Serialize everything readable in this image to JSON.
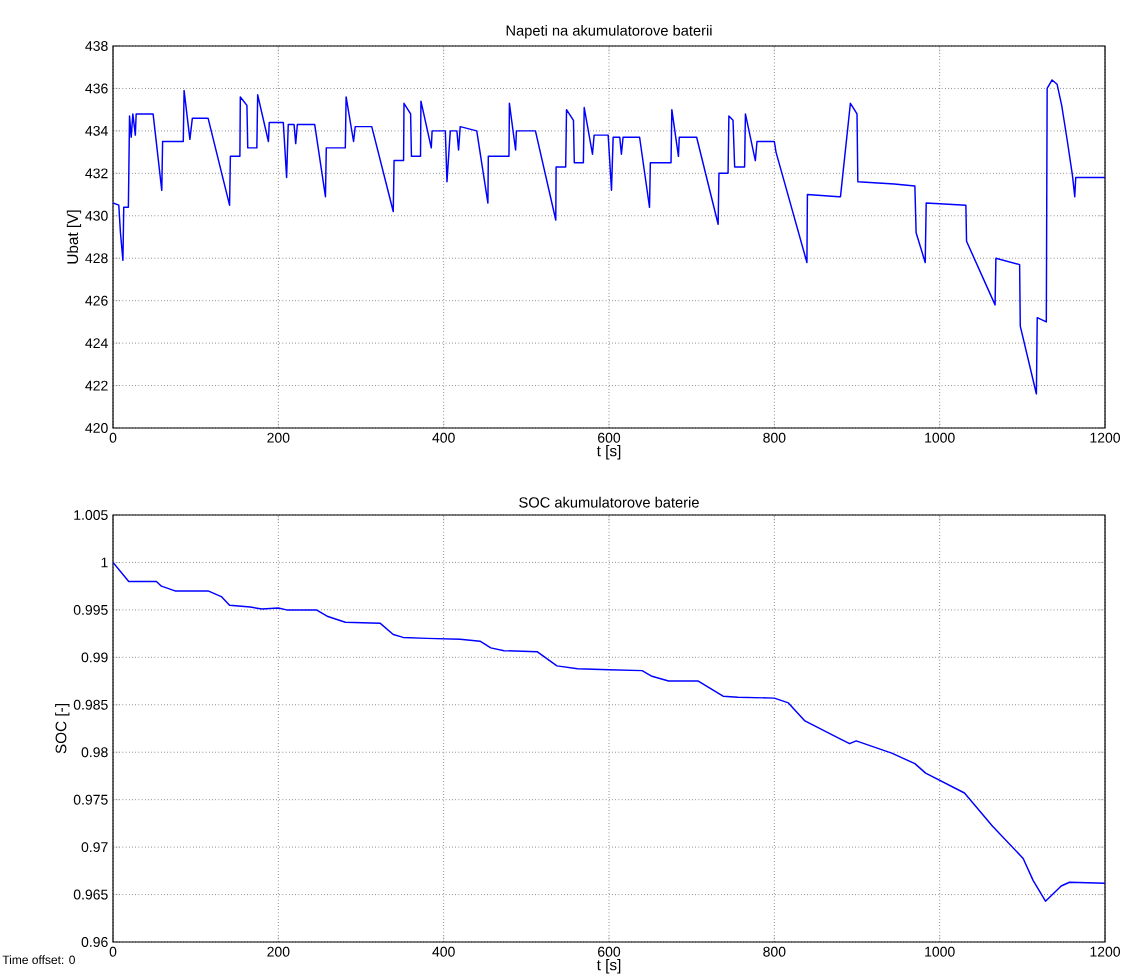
{
  "chart_data": [
    {
      "type": "line",
      "title": "Napeti na akumulatorove baterii",
      "xlabel": "t [s]",
      "ylabel": "Ubat [V]",
      "xlim": [
        0,
        1200
      ],
      "ylim": [
        420,
        438
      ],
      "xticks": [
        0,
        200,
        400,
        600,
        800,
        1000,
        1200
      ],
      "yticks": [
        420,
        422,
        424,
        426,
        428,
        430,
        432,
        434,
        436,
        438
      ],
      "grid": true,
      "series": [
        {
          "color": "#0000ff",
          "x": [
            0,
            7,
            9,
            12,
            13,
            18.6,
            20,
            22,
            24,
            27,
            28,
            48.5,
            59,
            60,
            85,
            86,
            93,
            96,
            115,
            141,
            142,
            153.5,
            154,
            162,
            163,
            174,
            175,
            188,
            189,
            206,
            210,
            212,
            219,
            221,
            223,
            244,
            257,
            258,
            281,
            282,
            291,
            293,
            313,
            339,
            340,
            351.5,
            352,
            360,
            361,
            372,
            372.5,
            385,
            386,
            402,
            404,
            408,
            416,
            418,
            420,
            440,
            453.5,
            454,
            479,
            479.5,
            487,
            488,
            511,
            535.6,
            536,
            547.6,
            548.6,
            557,
            558,
            569,
            570,
            580,
            582,
            599,
            603,
            605,
            613,
            615,
            617,
            637,
            649,
            650,
            675,
            676,
            684,
            685,
            706,
            732,
            733,
            744,
            745,
            750,
            752,
            764,
            765,
            777,
            779,
            800,
            802,
            839.4,
            840,
            878,
            880,
            892,
            900,
            901,
            945,
            970,
            971.5,
            982.5,
            983.7,
            1031.7,
            1032.5,
            1067,
            1068,
            1096.7,
            1097.5,
            1117,
            1118,
            1129,
            1130,
            1136,
            1142,
            1147.6,
            1154.5,
            1160.6,
            1163.4,
            1164.6,
            1200
          ],
          "values": [
            430.6,
            430.5,
            429.2,
            427.9,
            430.4,
            430.4,
            434.7,
            433.7,
            434.8,
            433.8,
            434.8,
            434.8,
            431.2,
            433.5,
            433.5,
            435.9,
            433.6,
            434.6,
            434.6,
            430.5,
            432.8,
            432.8,
            435.6,
            435.2,
            433.2,
            433.2,
            435.7,
            433.5,
            434.4,
            434.4,
            431.8,
            434.3,
            434.3,
            433.4,
            434.3,
            434.3,
            430.9,
            433.2,
            433.2,
            435.6,
            433.5,
            434.2,
            434.2,
            430.2,
            432.6,
            432.6,
            435.3,
            434.8,
            432.8,
            432.8,
            435.4,
            433.2,
            434.0,
            434.0,
            431.6,
            434.0,
            434.0,
            433.1,
            434.2,
            434.0,
            430.6,
            432.8,
            432.8,
            435.3,
            433.1,
            434.0,
            434.0,
            429.8,
            432.3,
            432.3,
            435.0,
            434.5,
            432.5,
            432.5,
            435.1,
            432.9,
            433.8,
            433.8,
            431.2,
            433.7,
            433.7,
            432.9,
            433.7,
            433.7,
            430.4,
            432.5,
            432.5,
            435.0,
            432.8,
            433.7,
            433.7,
            429.6,
            432.0,
            432.0,
            434.7,
            434.5,
            432.3,
            432.3,
            434.8,
            432.6,
            433.5,
            433.5,
            433.0,
            427.8,
            431.0,
            430.9,
            430.9,
            435.3,
            434.8,
            431.6,
            431.5,
            431.4,
            429.2,
            427.8,
            430.6,
            430.5,
            428.8,
            425.8,
            428.0,
            427.7,
            424.8,
            421.6,
            425.2,
            425.0,
            436.0,
            436.4,
            436.2,
            435.2,
            433.5,
            431.9,
            430.9,
            431.8,
            431.8
          ]
        }
      ]
    },
    {
      "type": "line",
      "title": "SOC akumulatorove baterie",
      "xlabel": "t [s]",
      "ylabel": "SOC [-]",
      "xlim": [
        0,
        1200
      ],
      "ylim": [
        0.96,
        1.005
      ],
      "xticks": [
        0,
        200,
        400,
        600,
        800,
        1000,
        1200
      ],
      "yticks": [
        0.96,
        0.965,
        0.97,
        0.975,
        0.98,
        0.985,
        0.99,
        0.995,
        1,
        1.005
      ],
      "grid": true,
      "annotations": [
        "Time offset:  0"
      ],
      "series": [
        {
          "color": "#0000ff",
          "x": [
            0,
            19,
            52.5,
            58.6,
            75,
            115,
            131,
            141,
            166,
            180,
            200,
            210,
            246,
            260,
            281,
            323,
            339,
            351,
            380,
            420,
            444,
            457,
            473,
            513,
            537,
            562,
            600,
            640,
            652,
            672,
            708,
            738,
            756,
            800,
            817,
            837,
            873,
            891,
            899,
            942,
            970,
            983,
            1030,
            1064,
            1101,
            1113,
            1128,
            1147,
            1157,
            1200
          ],
          "values": [
            1.0,
            0.998,
            0.998,
            0.9975,
            0.997,
            0.997,
            0.9964,
            0.9955,
            0.9953,
            0.9951,
            0.9952,
            0.995,
            0.995,
            0.9943,
            0.9937,
            0.9936,
            0.9924,
            0.9921,
            0.992,
            0.9919,
            0.9917,
            0.991,
            0.9907,
            0.9906,
            0.9891,
            0.9888,
            0.9887,
            0.9886,
            0.988,
            0.9875,
            0.9875,
            0.9859,
            0.9858,
            0.9857,
            0.9852,
            0.9833,
            0.9817,
            0.9809,
            0.9812,
            0.9799,
            0.9788,
            0.9778,
            0.9757,
            0.9722,
            0.9688,
            0.9665,
            0.9643,
            0.9659,
            0.9663,
            0.9662
          ]
        }
      ]
    }
  ]
}
